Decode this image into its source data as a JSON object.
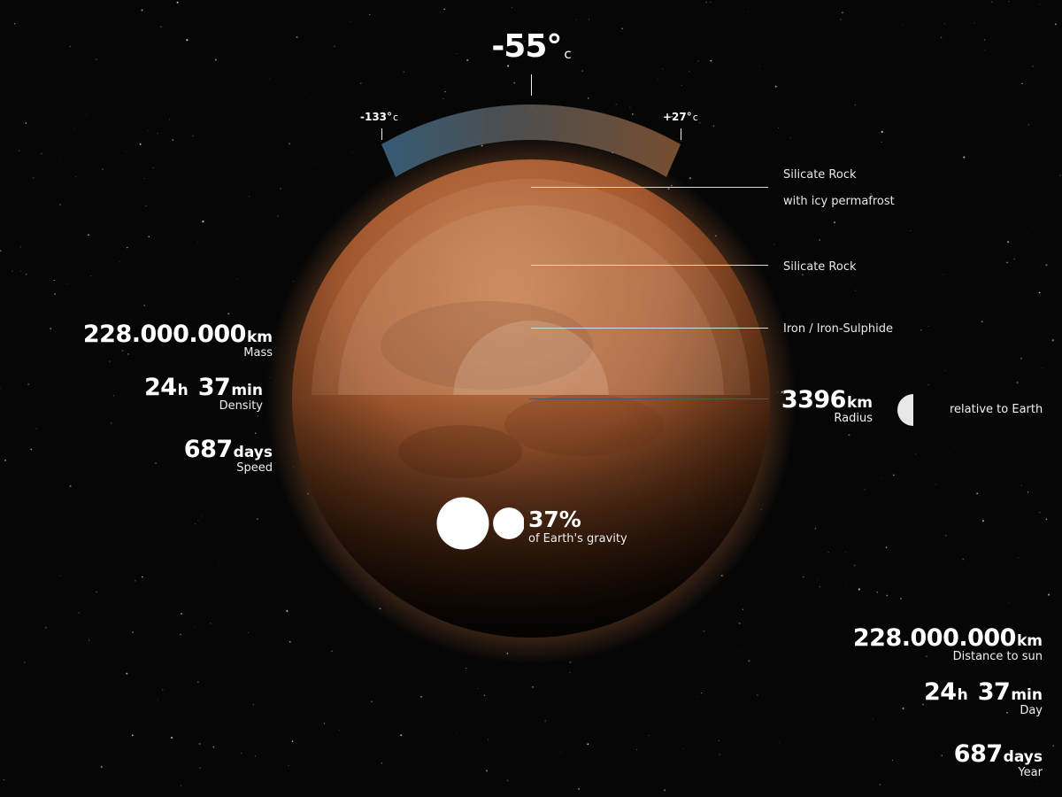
{
  "temperature": {
    "avg_value": "-55°",
    "avg_unit": "c",
    "min_value": "-133°",
    "min_unit": "c",
    "max_value": "+27°",
    "max_unit": "c"
  },
  "layers": [
    {
      "line1": "Silicate Rock",
      "line2": "with icy permafrost"
    },
    {
      "line1": "Silicate Rock"
    },
    {
      "line1": "Iron / Iron-Sulphide"
    }
  ],
  "left_stats": [
    {
      "value": "228.000.000",
      "unit": "km",
      "label": "Mass"
    },
    {
      "value": "24",
      "unit": "h",
      "value2": "37",
      "unit2": "min",
      "label": "Density"
    },
    {
      "value": "687",
      "unit": "days",
      "label": "Speed"
    }
  ],
  "radius": {
    "value": "3396",
    "unit": "km",
    "label": "Radius",
    "relative_label": "relative to Earth"
  },
  "gravity": {
    "value": "37%",
    "label": "of Earth's gravity",
    "fraction": 0.37
  },
  "right_stats": [
    {
      "value": "228.000.000",
      "unit": "km",
      "label": "Distance to sun"
    },
    {
      "value": "24",
      "unit": "h",
      "value2": "37",
      "unit2": "min",
      "label": "Day"
    },
    {
      "value": "687",
      "unit": "days",
      "label": "Year"
    }
  ],
  "colors": {
    "background": "#060606",
    "planet": "#b8663a",
    "cold": "#4a6a82",
    "warm": "#8a5a3a"
  }
}
